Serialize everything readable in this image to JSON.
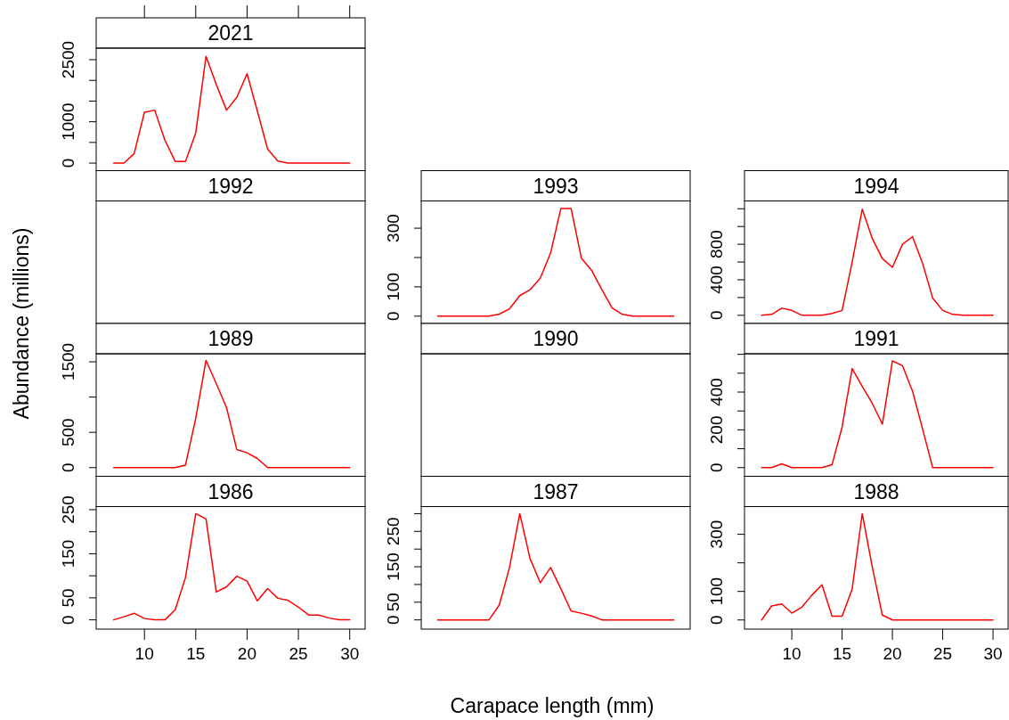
{
  "chart_data": [
    {
      "type": "line",
      "title": "2021",
      "x": [
        7,
        8,
        9,
        10,
        11,
        12,
        13,
        14,
        15,
        16,
        17,
        18,
        19,
        20,
        21,
        22,
        23,
        24,
        25,
        26,
        27,
        28,
        29,
        30
      ],
      "values": [
        0,
        0,
        230,
        1230,
        1280,
        550,
        40,
        40,
        730,
        2580,
        1900,
        1280,
        1590,
        2160,
        1260,
        340,
        50,
        0,
        0,
        0,
        0,
        0,
        0,
        0
      ],
      "color": "#ff0000",
      "xlim": [
        5.3,
        31.5
      ],
      "xticks": [
        {
          "value": 10,
          "label": null
        },
        {
          "value": 15,
          "label": null
        },
        {
          "value": 20,
          "label": null
        },
        {
          "value": 25,
          "label": null
        },
        {
          "value": 30,
          "label": null
        }
      ],
      "ylim": [
        -182,
        2780
      ],
      "yticks": [
        0,
        {
          "value": 500,
          "label": null
        },
        1000,
        {
          "value": 1500,
          "label": null
        },
        {
          "value": 2000,
          "label": null
        },
        2500
      ],
      "tick_labels": "y"
    },
    {
      "type": "other",
      "title": "1992"
    },
    {
      "type": "line",
      "title": "1993",
      "categories": [
        null,
        null,
        null,
        null,
        null,
        null,
        null,
        null,
        null,
        null,
        null,
        null,
        null,
        null,
        null,
        null,
        null,
        null,
        null,
        null,
        null,
        null,
        null,
        null
      ],
      "values": [
        0,
        0,
        0,
        0,
        0,
        0,
        7,
        25,
        70,
        90,
        130,
        215,
        367,
        367,
        198,
        156,
        90,
        28,
        6,
        0,
        0,
        0,
        0,
        0
      ],
      "color": "#ff0000",
      "ylim": [
        -25,
        393
      ],
      "yticks": [
        0,
        100,
        {
          "value": 200,
          "label": null
        },
        300
      ],
      "tick_labels": "y"
    },
    {
      "type": "line",
      "title": "1994",
      "x": [
        7,
        8,
        9,
        10,
        11,
        12,
        13,
        14,
        15,
        16,
        17,
        18,
        19,
        20,
        21,
        22,
        23,
        24,
        25,
        26,
        27,
        28,
        29,
        30
      ],
      "values": [
        0,
        10,
        80,
        55,
        0,
        0,
        0,
        20,
        55,
        600,
        1195,
        865,
        640,
        540,
        800,
        885,
        585,
        195,
        55,
        10,
        0,
        0,
        0,
        0
      ],
      "color": "#ff0000",
      "xlim": [
        5.3,
        31.5
      ],
      "ylim": [
        -92,
        1288
      ],
      "yticks": [
        0,
        {
          "value": 200,
          "label": null
        },
        400,
        {
          "value": 600,
          "label": null
        },
        800,
        {
          "value": 1000,
          "label": null
        },
        {
          "value": 1200,
          "label": null
        }
      ],
      "tick_labels": "y"
    },
    {
      "type": "line",
      "title": "1989",
      "ylabel": "Abundance (millions)",
      "x": [
        7,
        8,
        9,
        10,
        11,
        12,
        13,
        14,
        15,
        16,
        17,
        18,
        19,
        20,
        21,
        22,
        23,
        24,
        25,
        26,
        27,
        28,
        29,
        30
      ],
      "values": [
        0,
        0,
        0,
        0,
        0,
        0,
        0,
        35,
        700,
        1520,
        1190,
        850,
        255,
        210,
        130,
        0,
        0,
        0,
        0,
        0,
        0,
        0,
        0,
        0
      ],
      "color": "#ff0000",
      "xlim": [
        5.3,
        31.5
      ],
      "ylim": [
        -123,
        1614
      ],
      "yticks": [
        0,
        500,
        {
          "value": 1000,
          "label": null
        },
        1500
      ],
      "tick_labels": "y"
    },
    {
      "type": "other",
      "title": "1990"
    },
    {
      "type": "line",
      "title": "1991",
      "x": [
        7,
        8,
        9,
        10,
        11,
        12,
        13,
        14,
        15,
        16,
        17,
        18,
        19,
        20,
        21,
        22,
        23,
        24,
        25,
        26,
        27,
        28,
        29,
        30
      ],
      "values": [
        0,
        0,
        20,
        0,
        0,
        0,
        0,
        15,
        215,
        525,
        430,
        340,
        230,
        565,
        540,
        405,
        205,
        0,
        0,
        0,
        0,
        0,
        0,
        0
      ],
      "color": "#ff0000",
      "xlim": [
        5.3,
        31.5
      ],
      "ylim": [
        -46,
        603
      ],
      "yticks": [
        0,
        {
          "value": 100,
          "label": null
        },
        200,
        {
          "value": 300,
          "label": null
        },
        400,
        {
          "value": 500,
          "label": null
        },
        {
          "value": 600,
          "label": null
        }
      ],
      "tick_labels": "y"
    },
    {
      "type": "line",
      "title": "1986",
      "x": [
        7,
        8,
        9,
        10,
        11,
        12,
        13,
        14,
        15,
        16,
        17,
        18,
        19,
        20,
        21,
        22,
        23,
        24,
        25,
        26,
        27,
        28,
        29,
        30
      ],
      "values": [
        0,
        7,
        15,
        3,
        0,
        0,
        23,
        96,
        241,
        229,
        63,
        75,
        99,
        88,
        43,
        71,
        49,
        44,
        29,
        11,
        11,
        4,
        0,
        0
      ],
      "color": "#ff0000",
      "xlim": [
        5.3,
        31.5
      ],
      "xticks": [
        10,
        15,
        20,
        25,
        30
      ],
      "ylim": [
        -21,
        257
      ],
      "yticks": [
        0,
        50,
        {
          "value": 100,
          "label": null
        },
        150,
        {
          "value": 200,
          "label": null
        },
        250
      ]
    },
    {
      "type": "line",
      "title": "1987",
      "xlabel": "Carapace length (mm)",
      "categories": [
        null,
        null,
        null,
        null,
        null,
        null,
        null,
        null,
        null,
        null,
        null,
        null,
        null,
        null,
        null,
        null,
        null,
        null,
        null,
        null,
        null,
        null,
        null,
        null
      ],
      "values": [
        0,
        0,
        0,
        0,
        0,
        0,
        42,
        148,
        300,
        173,
        105,
        148,
        88,
        25,
        19,
        11,
        0,
        0,
        0,
        0,
        0,
        0,
        0,
        0
      ],
      "color": "#ff0000",
      "ylim": [
        -26,
        320
      ],
      "yticks": [
        0,
        50,
        {
          "value": 100,
          "label": null
        },
        150,
        {
          "value": 200,
          "label": null
        },
        250,
        {
          "value": 300,
          "label": null
        }
      ],
      "tick_labels": "y"
    },
    {
      "type": "line",
      "title": "1988",
      "x": [
        7,
        8,
        9,
        10,
        11,
        12,
        13,
        14,
        15,
        16,
        17,
        18,
        19,
        20,
        21,
        22,
        23,
        24,
        25,
        26,
        27,
        28,
        29,
        30
      ],
      "values": [
        0,
        49,
        56,
        24,
        45,
        87,
        123,
        13,
        13,
        108,
        372,
        186,
        17,
        0,
        0,
        0,
        0,
        0,
        0,
        0,
        0,
        0,
        0,
        0
      ],
      "color": "#ff0000",
      "xlim": [
        5.3,
        31.5
      ],
      "xticks": [
        10,
        15,
        20,
        25,
        30
      ],
      "ylim": [
        -32,
        397
      ],
      "yticks": [
        0,
        100,
        {
          "value": 200,
          "label": null
        },
        300
      ]
    }
  ]
}
